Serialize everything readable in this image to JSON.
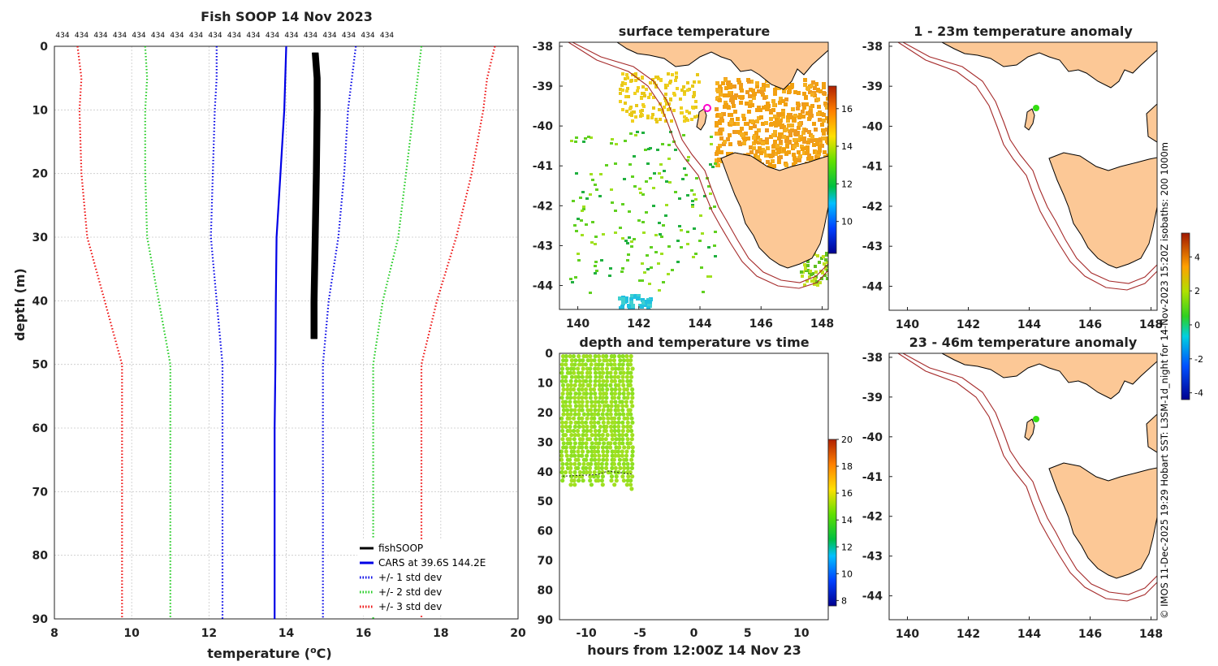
{
  "chart_data": [
    {
      "type": "line",
      "title": "Fish SOOP 14 Nov 2023",
      "xlabel": "temperature (",
      "xlabel_sup": "o",
      "xlabel_tail": "C)",
      "ylabel": "depth (m)",
      "xlim": [
        8,
        20
      ],
      "ylim": [
        90,
        0
      ],
      "xticks": [
        "8",
        "10",
        "12",
        "14",
        "16",
        "18",
        "20"
      ],
      "yticks": [
        "0",
        "10",
        "20",
        "30",
        "40",
        "50",
        "60",
        "70",
        "80",
        "90"
      ],
      "top_labels": [
        "434",
        "434",
        "434",
        "434",
        "434",
        "434",
        "434",
        "434",
        "434",
        "434",
        "434",
        "434",
        "434",
        "434",
        "434",
        "434",
        "434",
        "434"
      ],
      "series": [
        {
          "name": "fishSOOP",
          "color": "#000000",
          "style": "solid",
          "points": [
            [
              14.75,
              1
            ],
            [
              14.8,
              5
            ],
            [
              14.8,
              10
            ],
            [
              14.78,
              20
            ],
            [
              14.75,
              30
            ],
            [
              14.72,
              40
            ],
            [
              14.72,
              46
            ]
          ]
        },
        {
          "name": "CARS at 39.6S 144.2E",
          "color": "#0000e6",
          "style": "solid",
          "points": [
            [
              14.0,
              0
            ],
            [
              13.95,
              10
            ],
            [
              13.85,
              20
            ],
            [
              13.75,
              30
            ],
            [
              13.73,
              40
            ],
            [
              13.72,
              50
            ],
            [
              13.7,
              60
            ],
            [
              13.7,
              70
            ],
            [
              13.7,
              80
            ],
            [
              13.7,
              90
            ]
          ]
        },
        {
          "name": "+/- 1 std dev",
          "color": "#0000e6",
          "style": "dotted",
          "points_low": [
            [
              12.2,
              0
            ],
            [
              12.2,
              5
            ],
            [
              12.15,
              10
            ],
            [
              12.1,
              20
            ],
            [
              12.05,
              30
            ],
            [
              12.2,
              40
            ],
            [
              12.35,
              50
            ],
            [
              12.35,
              60
            ],
            [
              12.35,
              70
            ],
            [
              12.35,
              80
            ],
            [
              12.35,
              90
            ]
          ],
          "points_high": [
            [
              15.8,
              0
            ],
            [
              15.7,
              5
            ],
            [
              15.6,
              10
            ],
            [
              15.5,
              20
            ],
            [
              15.35,
              30
            ],
            [
              15.1,
              40
            ],
            [
              14.95,
              50
            ],
            [
              14.95,
              60
            ],
            [
              14.95,
              70
            ],
            [
              14.95,
              80
            ],
            [
              14.95,
              90
            ]
          ]
        },
        {
          "name": "+/- 2 std dev",
          "color": "#22cc22",
          "style": "dotted",
          "points_low": [
            [
              10.35,
              0
            ],
            [
              10.4,
              5
            ],
            [
              10.35,
              10
            ],
            [
              10.35,
              20
            ],
            [
              10.4,
              30
            ],
            [
              10.7,
              40
            ],
            [
              11.0,
              50
            ],
            [
              11.0,
              60
            ],
            [
              11.0,
              70
            ],
            [
              11.0,
              80
            ],
            [
              11.0,
              90
            ]
          ],
          "points_high": [
            [
              17.5,
              0
            ],
            [
              17.4,
              5
            ],
            [
              17.3,
              10
            ],
            [
              17.1,
              20
            ],
            [
              16.9,
              30
            ],
            [
              16.5,
              40
            ],
            [
              16.25,
              50
            ],
            [
              16.25,
              60
            ],
            [
              16.25,
              70
            ],
            [
              16.25,
              80
            ],
            [
              16.25,
              90
            ]
          ]
        },
        {
          "name": "+/- 3 std dev",
          "color": "#ee1111",
          "style": "dotted",
          "points_low": [
            [
              8.6,
              0
            ],
            [
              8.7,
              5
            ],
            [
              8.65,
              10
            ],
            [
              8.7,
              20
            ],
            [
              8.85,
              30
            ],
            [
              9.3,
              40
            ],
            [
              9.75,
              50
            ],
            [
              9.75,
              60
            ],
            [
              9.75,
              70
            ],
            [
              9.75,
              80
            ],
            [
              9.75,
              90
            ]
          ],
          "points_high": [
            [
              19.4,
              0
            ],
            [
              19.2,
              5
            ],
            [
              19.1,
              10
            ],
            [
              18.8,
              20
            ],
            [
              18.4,
              30
            ],
            [
              17.9,
              40
            ],
            [
              17.5,
              50
            ],
            [
              17.5,
              60
            ],
            [
              17.5,
              70
            ],
            [
              17.5,
              80
            ],
            [
              17.5,
              90
            ]
          ]
        }
      ]
    },
    {
      "type": "heatmap",
      "title": "surface temperature",
      "xticks": [
        "140",
        "142",
        "144",
        "146",
        "148"
      ],
      "yticks": [
        "-38",
        "-39",
        "-40",
        "-41",
        "-42",
        "-43",
        "-44"
      ],
      "xlim": [
        139.4,
        148.2
      ],
      "ylim": [
        -44.6,
        -38
      ],
      "colorbar_ticks": [
        "16",
        "14",
        "12",
        "10"
      ],
      "marker": {
        "lon": 144.2,
        "lat": -39.6,
        "color": "#ff00cc"
      }
    },
    {
      "type": "scatter",
      "title": "depth and temperature vs time",
      "xlabel": "hours from 12:00Z 14 Nov 23",
      "xticks": [
        "-10",
        "-5",
        "0",
        "5",
        "10"
      ],
      "yticks": [
        "0",
        "10",
        "20",
        "30",
        "40",
        "50",
        "60",
        "70",
        "80",
        "90"
      ],
      "xlim": [
        -12.5,
        12.5
      ],
      "ylim": [
        90,
        0
      ],
      "time_range": [
        -12.2,
        -5.8
      ],
      "depth_range": [
        1,
        45
      ],
      "colorbar_ticks": [
        "20",
        "18",
        "16",
        "14",
        "12",
        "10",
        "8"
      ]
    },
    {
      "type": "heatmap",
      "title": "1 - 23m temperature anomaly",
      "xticks": [
        "140",
        "142",
        "144",
        "146",
        "148"
      ],
      "yticks": [
        "-38",
        "-39",
        "-40",
        "-41",
        "-42",
        "-43",
        "-44"
      ],
      "marker": {
        "lon": 144.2,
        "lat": -39.6,
        "color": "#33dd11"
      }
    },
    {
      "type": "heatmap",
      "title": "23 - 46m temperature anomaly",
      "xticks": [
        "140",
        "142",
        "144",
        "146",
        "148"
      ],
      "yticks": [
        "-38",
        "-39",
        "-40",
        "-41",
        "-42",
        "-43",
        "-44"
      ],
      "marker": {
        "lon": 144.2,
        "lat": -39.6,
        "color": "#33dd11"
      },
      "colorbar_ticks": [
        "4",
        "2",
        "0",
        "-2",
        "-4"
      ]
    }
  ],
  "credit": "© IMOS 11-Dec-2025 19:29 Hobart SST: L3SM-1d_night for 14-Nov-2023 15:20Z isobaths: 200  1000m"
}
